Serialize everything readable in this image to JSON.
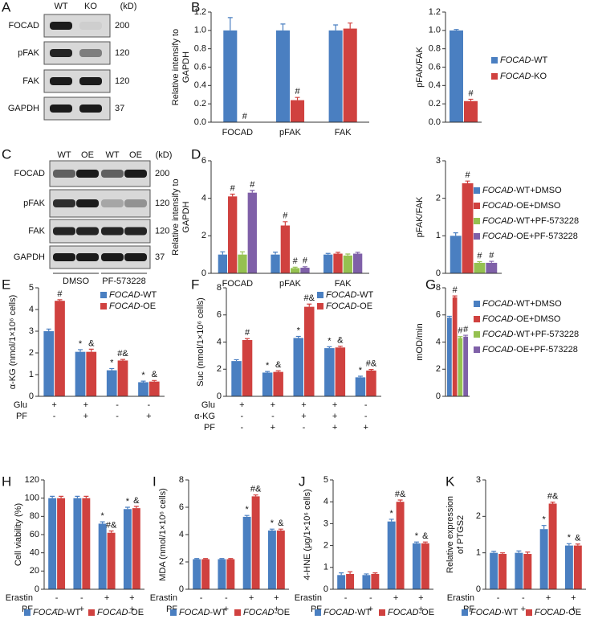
{
  "blots": [
    {
      "panel": "A",
      "lanes": [
        "WT",
        "KO"
      ],
      "unit": "(kD)",
      "rows": [
        {
          "name": "FOCAD",
          "size": 200
        },
        {
          "name": "pFAK",
          "size": 120
        },
        {
          "name": "FAK",
          "size": 120
        },
        {
          "name": "GAPDH",
          "size": 37
        }
      ]
    },
    {
      "panel": "C",
      "lanes": [
        "WT",
        "OE",
        "WT",
        "OE"
      ],
      "unit": "(kD)",
      "groups": [
        "DMSO",
        "PF-573228"
      ],
      "rows": [
        {
          "name": "FOCAD",
          "size": 200
        },
        {
          "name": "pFAK",
          "size": 120
        },
        {
          "name": "FAK",
          "size": 120
        },
        {
          "name": "GAPDH",
          "size": 37
        }
      ]
    }
  ],
  "chart_data": [
    {
      "panel": "B",
      "type": "bar",
      "ylabel": [
        "Relative intensify to",
        "GAPDH"
      ],
      "categories": [
        "FOCAD",
        "pFAK",
        "FAK"
      ],
      "series": [
        {
          "color": "#4a7fc1",
          "values": [
            1.0,
            1.0,
            1.0
          ],
          "errors": [
            0.14,
            0.07,
            0.06
          ],
          "annotations": [
            null,
            null,
            null
          ]
        },
        {
          "color": "#d0413f",
          "values": [
            0,
            0.24,
            1.02
          ],
          "errors": [
            0,
            0.03,
            0.06
          ],
          "annotations": [
            "#",
            "#",
            null
          ]
        }
      ],
      "ylim": [
        0,
        1.2
      ],
      "yticks": [
        {
          "value": 0,
          "label": "0.0"
        },
        {
          "value": 0.2,
          "label": "0.2"
        },
        {
          "value": 0.4,
          "label": "0.4"
        },
        {
          "value": 0.6,
          "label": "0.6"
        },
        {
          "value": 0.8,
          "label": "0.8"
        },
        {
          "value": 1.0,
          "label": "1.0"
        },
        {
          "value": 1.2,
          "label": "1.2"
        }
      ]
    },
    {
      "type": "bar",
      "ylabel": [
        "pFAK/FAK"
      ],
      "categories": [
        null
      ],
      "series": [
        {
          "name": "FOCAD-WT",
          "color": "#4a7fc1",
          "values": [
            1.0
          ],
          "errors": [
            0.01
          ],
          "annotations": [
            null
          ]
        },
        {
          "name": "FOCAD-KO",
          "color": "#d0413f",
          "values": [
            0.23
          ],
          "errors": [
            0.02
          ],
          "annotations": [
            "#"
          ]
        }
      ],
      "ylim": [
        0,
        1.2
      ],
      "yticks": [
        {
          "value": 0,
          "label": "0.0"
        },
        {
          "value": 0.2,
          "label": "0.2"
        },
        {
          "value": 0.4,
          "label": "0.4"
        },
        {
          "value": 0.6,
          "label": "0.6"
        },
        {
          "value": 0.8,
          "label": "0.8"
        },
        {
          "value": 1.0,
          "label": "1.0"
        },
        {
          "value": 1.2,
          "label": "1.2"
        }
      ]
    },
    {
      "panel": "D",
      "type": "bar",
      "ylabel": [
        "Relative intensify to",
        "GAPDH"
      ],
      "categories": [
        "FOCAD",
        "pFAK",
        "FAK"
      ],
      "series": [
        {
          "color": "#4a7fc1",
          "values": [
            1.0,
            1.0,
            1.0
          ],
          "errors": [
            0.15,
            0.13,
            0.06
          ],
          "annotations": [
            null,
            null,
            null
          ]
        },
        {
          "color": "#d0413f",
          "values": [
            4.1,
            2.55,
            1.05
          ],
          "errors": [
            0.12,
            0.2,
            0.07
          ],
          "annotations": [
            "#",
            "#",
            null
          ]
        },
        {
          "color": "#95c150",
          "values": [
            1.0,
            0.28,
            0.95
          ],
          "errors": [
            0.15,
            0.05,
            0.08
          ],
          "annotations": [
            null,
            "#",
            null
          ]
        },
        {
          "color": "#7f60a8",
          "values": [
            4.3,
            0.3,
            1.05
          ],
          "errors": [
            0.12,
            0.05,
            0.07
          ],
          "annotations": [
            "#",
            "#",
            null
          ]
        }
      ],
      "ylim": [
        0,
        6
      ],
      "yticks": [
        0,
        2,
        4,
        6
      ]
    },
    {
      "type": "bar",
      "ylabel": [
        "pFAK/FAK"
      ],
      "categories": [
        null
      ],
      "series": [
        {
          "name": "FOCAD-WT+DMSO",
          "color": "#4a7fc1",
          "values": [
            1.0
          ],
          "errors": [
            0.08
          ],
          "annotations": [
            null
          ]
        },
        {
          "name": "FOCAD-OE+DMSO",
          "color": "#d0413f",
          "values": [
            2.4
          ],
          "errors": [
            0.06
          ],
          "annotations": [
            "#"
          ]
        },
        {
          "name": "FOCAD-WT+PF-573228",
          "color": "#95c150",
          "values": [
            0.28
          ],
          "errors": [
            0.03
          ],
          "annotations": [
            "#"
          ]
        },
        {
          "name": "FOCAD-OE+PF-573228",
          "color": "#7f60a8",
          "values": [
            0.28
          ],
          "errors": [
            0.04
          ],
          "annotations": [
            "#"
          ]
        }
      ],
      "ylim": [
        0,
        3
      ],
      "yticks": [
        0,
        1,
        2,
        3
      ]
    },
    {
      "panel": "E",
      "type": "bar",
      "ylabel": [
        "α-KG (nmol/1×10⁶ cells)"
      ],
      "conditions": [
        {
          "name": "Glu",
          "values": [
            "+",
            "+",
            "-",
            "-"
          ]
        },
        {
          "name": "PF",
          "values": [
            "-",
            "+",
            "-",
            "+"
          ]
        }
      ],
      "series": [
        {
          "name": "FOCAD-WT",
          "color": "#4a7fc1",
          "values": [
            3.0,
            2.05,
            1.2,
            0.65
          ],
          "errors": [
            0.1,
            0.1,
            0.08,
            0.05
          ],
          "annotations": [
            null,
            "*",
            "*",
            "*"
          ]
        },
        {
          "name": "FOCAD-OE",
          "color": "#d0413f",
          "values": [
            4.4,
            2.05,
            1.65,
            0.68
          ],
          "errors": [
            0.05,
            0.12,
            0.05,
            0.05
          ],
          "annotations": [
            "#",
            "&",
            "#&",
            "&"
          ]
        }
      ],
      "ylim": [
        0,
        5
      ],
      "yticks": [
        0,
        1,
        2,
        3,
        4,
        5
      ]
    },
    {
      "panel": "F",
      "type": "bar",
      "ylabel": [
        "Suc (nmol/1×10⁶ cells)"
      ],
      "conditions": [
        {
          "name": "Glu",
          "values": [
            "+",
            "+",
            "+",
            "+",
            "-"
          ]
        },
        {
          "name": "α-KG",
          "values": [
            "-",
            "-",
            "+",
            "+",
            "-"
          ]
        },
        {
          "name": "PF",
          "values": [
            "-",
            "+",
            "-",
            "+",
            "+"
          ]
        }
      ],
      "series": [
        {
          "name": "FOCAD-WT",
          "color": "#4a7fc1",
          "values": [
            2.6,
            1.75,
            4.3,
            3.55,
            1.4
          ],
          "errors": [
            0.1,
            0.08,
            0.12,
            0.1,
            0.08
          ],
          "annotations": [
            null,
            "*",
            "*",
            "*",
            "*"
          ]
        },
        {
          "name": "FOCAD-OE",
          "color": "#d0413f",
          "values": [
            4.15,
            1.8,
            6.6,
            3.6,
            1.9
          ],
          "errors": [
            0.1,
            0.08,
            0.2,
            0.1,
            0.08
          ],
          "annotations": [
            "#",
            "&",
            "#&",
            "&",
            "#&"
          ]
        }
      ],
      "ylim": [
        0,
        8
      ],
      "yticks": [
        0,
        2,
        4,
        6,
        8
      ]
    },
    {
      "panel": "G",
      "type": "bar",
      "ylabel": [
        "mOD/min"
      ],
      "categories": [
        null
      ],
      "series": [
        {
          "name": "FOCAD-WT+DMSO",
          "color": "#4a7fc1",
          "values": [
            5.8
          ],
          "errors": [
            0.1
          ],
          "annotations": [
            null
          ]
        },
        {
          "name": "FOCAD-OE+DMSO",
          "color": "#d0413f",
          "values": [
            7.3
          ],
          "errors": [
            0.1
          ],
          "annotations": [
            "#"
          ]
        },
        {
          "name": "FOCAD-WT+PF-573228",
          "color": "#95c150",
          "values": [
            4.3
          ],
          "errors": [
            0.1
          ],
          "annotations": [
            "#"
          ]
        },
        {
          "name": "FOCAD-OE+PF-573228",
          "color": "#7f60a8",
          "values": [
            4.4
          ],
          "errors": [
            0.1
          ],
          "annotations": [
            "#"
          ]
        }
      ],
      "ylim": [
        0,
        8
      ],
      "yticks": [
        0,
        2,
        4,
        6,
        8
      ]
    },
    {
      "panel": "H",
      "type": "bar",
      "ylabel": [
        "Cell viability (%)"
      ],
      "conditions": [
        {
          "name": "Erastin",
          "values": [
            "-",
            "-",
            "+",
            "+"
          ]
        },
        {
          "name": "PF",
          "values": [
            "-",
            "+",
            "-",
            "+"
          ]
        }
      ],
      "series": [
        {
          "name": "FOCAD-WT",
          "color": "#4a7fc1",
          "values": [
            100,
            100,
            72,
            88
          ],
          "errors": [
            2,
            2,
            2,
            2
          ],
          "annotations": [
            null,
            null,
            "*",
            "*"
          ]
        },
        {
          "name": "FOCAD-OE",
          "color": "#d0413f",
          "values": [
            100,
            100,
            62,
            89
          ],
          "errors": [
            2,
            2,
            2,
            2
          ],
          "annotations": [
            null,
            null,
            "#&",
            "&"
          ]
        }
      ],
      "ylim": [
        0,
        120
      ],
      "yticks": [
        0,
        20,
        40,
        60,
        80,
        100,
        120
      ]
    },
    {
      "panel": "I",
      "type": "bar",
      "ylabel": [
        "MDA (nmol/1×10⁶ cells)"
      ],
      "conditions": [
        {
          "name": "Erastin",
          "values": [
            "-",
            "-",
            "+",
            "+"
          ]
        },
        {
          "name": "PF",
          "values": [
            "-",
            "+",
            "-",
            "+"
          ]
        }
      ],
      "series": [
        {
          "name": "FOCAD-WT",
          "color": "#4a7fc1",
          "values": [
            2.2,
            2.2,
            5.3,
            4.3
          ],
          "errors": [
            0.05,
            0.05,
            0.1,
            0.1
          ],
          "annotations": [
            null,
            null,
            "*",
            "*"
          ]
        },
        {
          "name": "FOCAD-OE",
          "color": "#d0413f",
          "values": [
            2.2,
            2.2,
            6.8,
            4.3
          ],
          "errors": [
            0.05,
            0.05,
            0.1,
            0.1
          ],
          "annotations": [
            null,
            null,
            "#&",
            "&"
          ]
        }
      ],
      "ylim": [
        0,
        8
      ],
      "yticks": [
        0,
        2,
        4,
        6,
        8
      ]
    },
    {
      "panel": "J",
      "type": "bar",
      "ylabel": [
        "4-HNE (μg/1×10⁶ cells)"
      ],
      "conditions": [
        {
          "name": "Erastin",
          "values": [
            "-",
            "-",
            "+",
            "+"
          ]
        },
        {
          "name": "PF",
          "values": [
            "-",
            "+",
            "-",
            "+"
          ]
        }
      ],
      "series": [
        {
          "name": "FOCAD-WT",
          "color": "#4a7fc1",
          "values": [
            0.65,
            0.65,
            3.1,
            2.1
          ],
          "errors": [
            0.1,
            0.05,
            0.1,
            0.06
          ],
          "annotations": [
            null,
            null,
            "*",
            "*"
          ]
        },
        {
          "name": "FOCAD-OE",
          "color": "#d0413f",
          "values": [
            0.7,
            0.7,
            4.0,
            2.1
          ],
          "errors": [
            0.1,
            0.05,
            0.08,
            0.06
          ],
          "annotations": [
            null,
            null,
            "#&",
            "&"
          ]
        }
      ],
      "ylim": [
        0,
        5
      ],
      "yticks": [
        0,
        1,
        2,
        3,
        4,
        5
      ]
    },
    {
      "panel": "K",
      "type": "bar",
      "ylabel": [
        "Relative expression",
        "of PTGS2"
      ],
      "conditions": [
        {
          "name": "Erastin",
          "values": [
            "-",
            "-",
            "+",
            "+"
          ]
        },
        {
          "name": "PF",
          "values": [
            "-",
            "+",
            "-",
            "+"
          ]
        }
      ],
      "series": [
        {
          "name": "FOCAD-WT",
          "color": "#4a7fc1",
          "values": [
            1.0,
            1.0,
            1.65,
            1.2
          ],
          "errors": [
            0.04,
            0.05,
            0.1,
            0.05
          ],
          "annotations": [
            null,
            null,
            "*",
            "*"
          ]
        },
        {
          "name": "FOCAD-OE",
          "color": "#d0413f",
          "values": [
            0.97,
            0.97,
            2.35,
            1.2
          ],
          "errors": [
            0.03,
            0.05,
            0.04,
            0.04
          ],
          "annotations": [
            null,
            null,
            "#&",
            "&"
          ]
        }
      ],
      "ylim": [
        0,
        3
      ],
      "yticks": [
        0,
        1,
        2,
        3
      ]
    }
  ]
}
